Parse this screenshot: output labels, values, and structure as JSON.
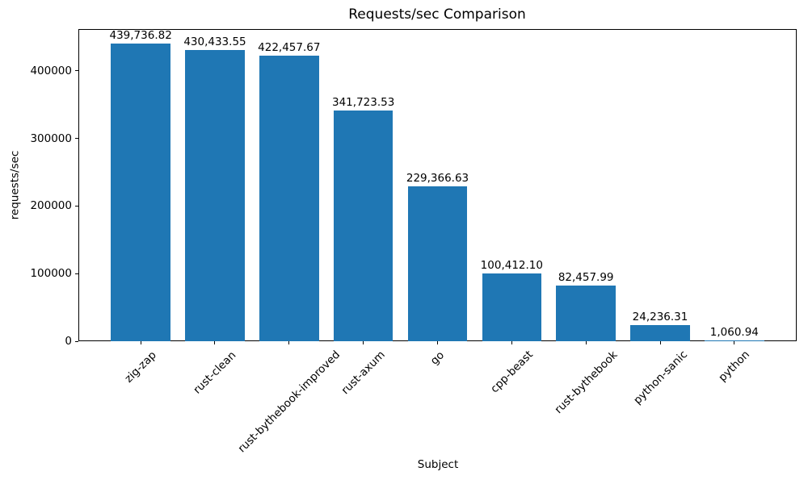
{
  "figure": {
    "title": "Requests/sec Comparison",
    "xlabel": "Subject",
    "ylabel": "requests/sec"
  },
  "chart_data": {
    "type": "bar",
    "title": "Requests/sec Comparison",
    "xlabel": "Subject",
    "ylabel": "requests/sec",
    "categories": [
      "zig-zap",
      "rust-clean",
      "rust-bythebook-improved",
      "rust-axum",
      "go",
      "cpp-beast",
      "rust-bythebook",
      "python-sanic",
      "python"
    ],
    "values": [
      439736.82,
      430433.55,
      422457.67,
      341723.53,
      229366.63,
      100412.1,
      82457.99,
      24236.31,
      1060.94
    ],
    "value_labels": [
      "439,736.82",
      "430,433.55",
      "422,457.67",
      "341,723.53",
      "229,366.63",
      "100,412.10",
      "82,457.99",
      "24,236.31",
      "1,060.94"
    ],
    "yticks": [
      0,
      100000,
      200000,
      300000,
      400000
    ],
    "ytick_labels": [
      "0",
      "100000",
      "200000",
      "300000",
      "400000"
    ],
    "ylim": [
      0,
      461723.66
    ],
    "xlim": [
      -0.84,
      8.84
    ],
    "bar_width_frac": 0.8,
    "bar_color": "#1f77b4",
    "grid": false,
    "legend": null,
    "x_tick_rotation_deg": 45
  }
}
